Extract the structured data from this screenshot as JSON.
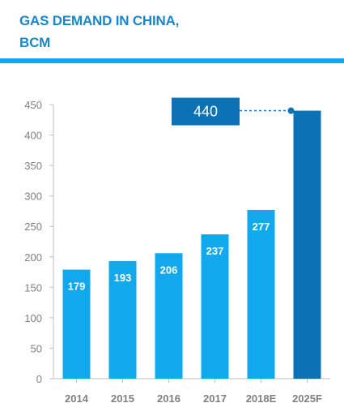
{
  "header": {
    "title_line1": "GAS DEMAND IN CHINA,",
    "title_line2": "BCM"
  },
  "colors": {
    "title": "#1a86c9",
    "rule": "#1aa3e8",
    "bar": "#12a8ee",
    "bar_forecast": "#0b72b5",
    "callout": "#0b72b5"
  },
  "chart_data": {
    "type": "bar",
    "categories": [
      "2014",
      "2015",
      "2016",
      "2017",
      "2018E",
      "2025F"
    ],
    "values": [
      179,
      193,
      206,
      237,
      277,
      440
    ],
    "data_labels": [
      "179",
      "193",
      "206",
      "237",
      "277",
      ""
    ],
    "ylim": [
      0,
      450
    ],
    "yticks": [
      0,
      50,
      100,
      150,
      200,
      250,
      300,
      350,
      400,
      450
    ],
    "grid": false,
    "callout": {
      "label": "440",
      "category": "2025F",
      "value": 440
    }
  }
}
